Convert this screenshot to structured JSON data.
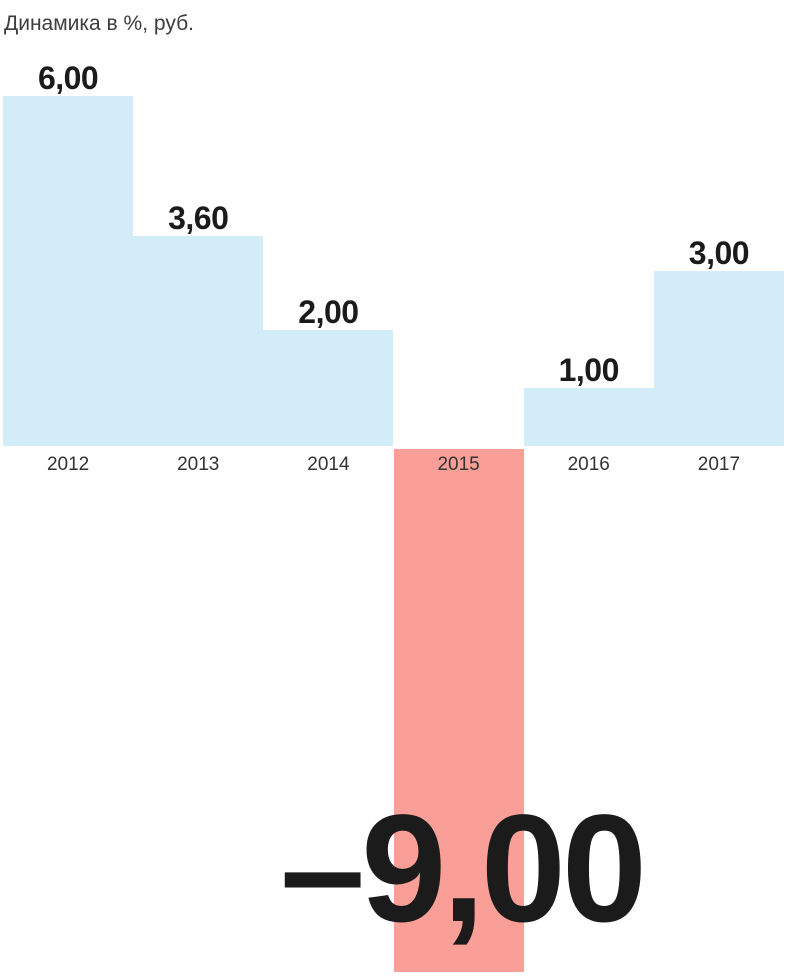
{
  "chart_data": {
    "type": "bar",
    "title": "Динамика в %, руб.",
    "categories": [
      "2012",
      "2013",
      "2014",
      "2015",
      "2016",
      "2017"
    ],
    "values": [
      6.0,
      3.6,
      2.0,
      -9.0,
      1.0,
      3.0
    ],
    "value_labels": [
      "6,00",
      "3,60",
      "2,00",
      "–9,00",
      "1,00",
      "3,00"
    ],
    "xlabel": "",
    "ylabel": "Динамика в %, руб.",
    "ylim": [
      -9,
      6
    ],
    "grid": false,
    "legend": false,
    "emphasized_category": "2015",
    "colors": {
      "positive": "#d2ecf8",
      "negative": "#fa9f97",
      "value_label": "#1b1b1b",
      "axis_label": "#333333",
      "title": "#3d3d3d"
    }
  }
}
